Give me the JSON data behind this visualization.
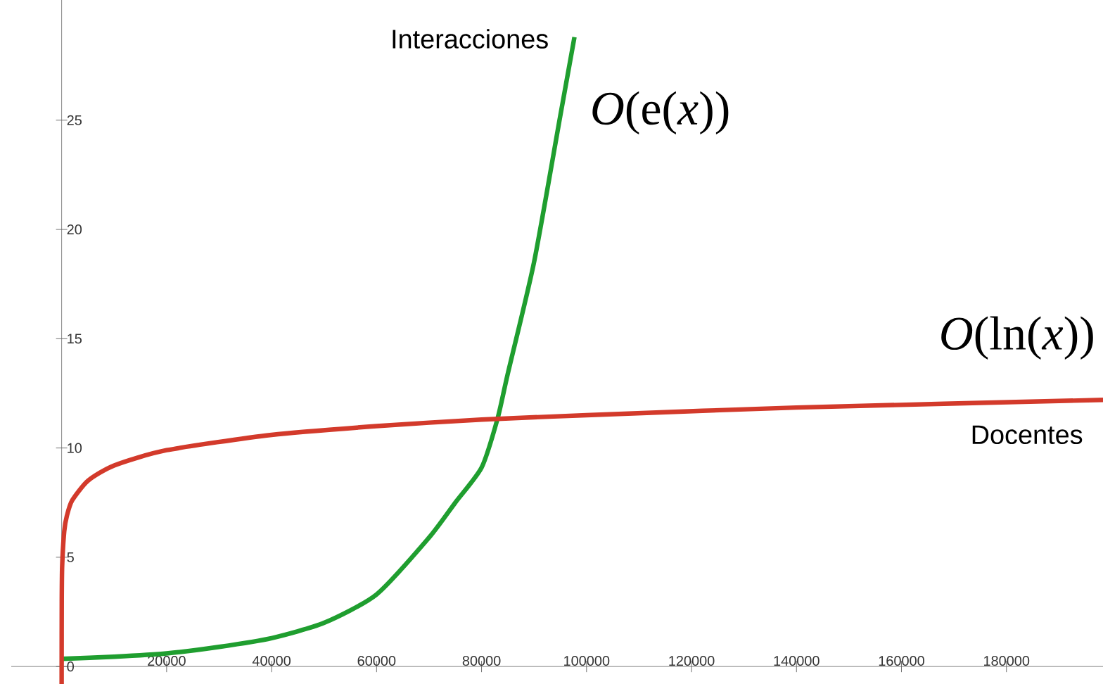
{
  "chart_data": {
    "type": "line",
    "xlim": [
      -9600,
      198400
    ],
    "ylim": [
      -0.8,
      30.5
    ],
    "xticks": [
      20000,
      40000,
      60000,
      80000,
      100000,
      120000,
      140000,
      160000,
      180000
    ],
    "yticks": [
      0,
      5,
      10,
      15,
      20,
      25
    ],
    "grid": false,
    "marker": "none",
    "line_style": "solid",
    "series": [
      {
        "name": "Interacciones",
        "color": "#1f9e2f",
        "x": [
          0,
          10000,
          20000,
          30000,
          40000,
          50000,
          60000,
          70000,
          75000,
          80000,
          83000,
          85000,
          90000,
          95000,
          97700
        ],
        "values": [
          0.35,
          0.45,
          0.6,
          0.9,
          1.3,
          2.0,
          3.3,
          5.9,
          7.5,
          9.1,
          11.3,
          13.4,
          18.5,
          25.2,
          28.8
        ]
      },
      {
        "name": "Docentes",
        "color": "#d33a2b",
        "x": [
          0.45,
          1,
          20,
          100,
          500,
          1000,
          2000,
          5000,
          10000,
          20000,
          40000,
          60000,
          80000,
          100000,
          140000,
          198400
        ],
        "values": [
          -0.8,
          0,
          3,
          4.6,
          6.2,
          6.9,
          7.6,
          8.5,
          9.2,
          9.9,
          10.6,
          11.0,
          11.3,
          11.5,
          11.85,
          12.2
        ]
      }
    ],
    "annotations": [
      "*O*(e(*x*))",
      "*O*(ln(*x*))"
    ]
  }
}
